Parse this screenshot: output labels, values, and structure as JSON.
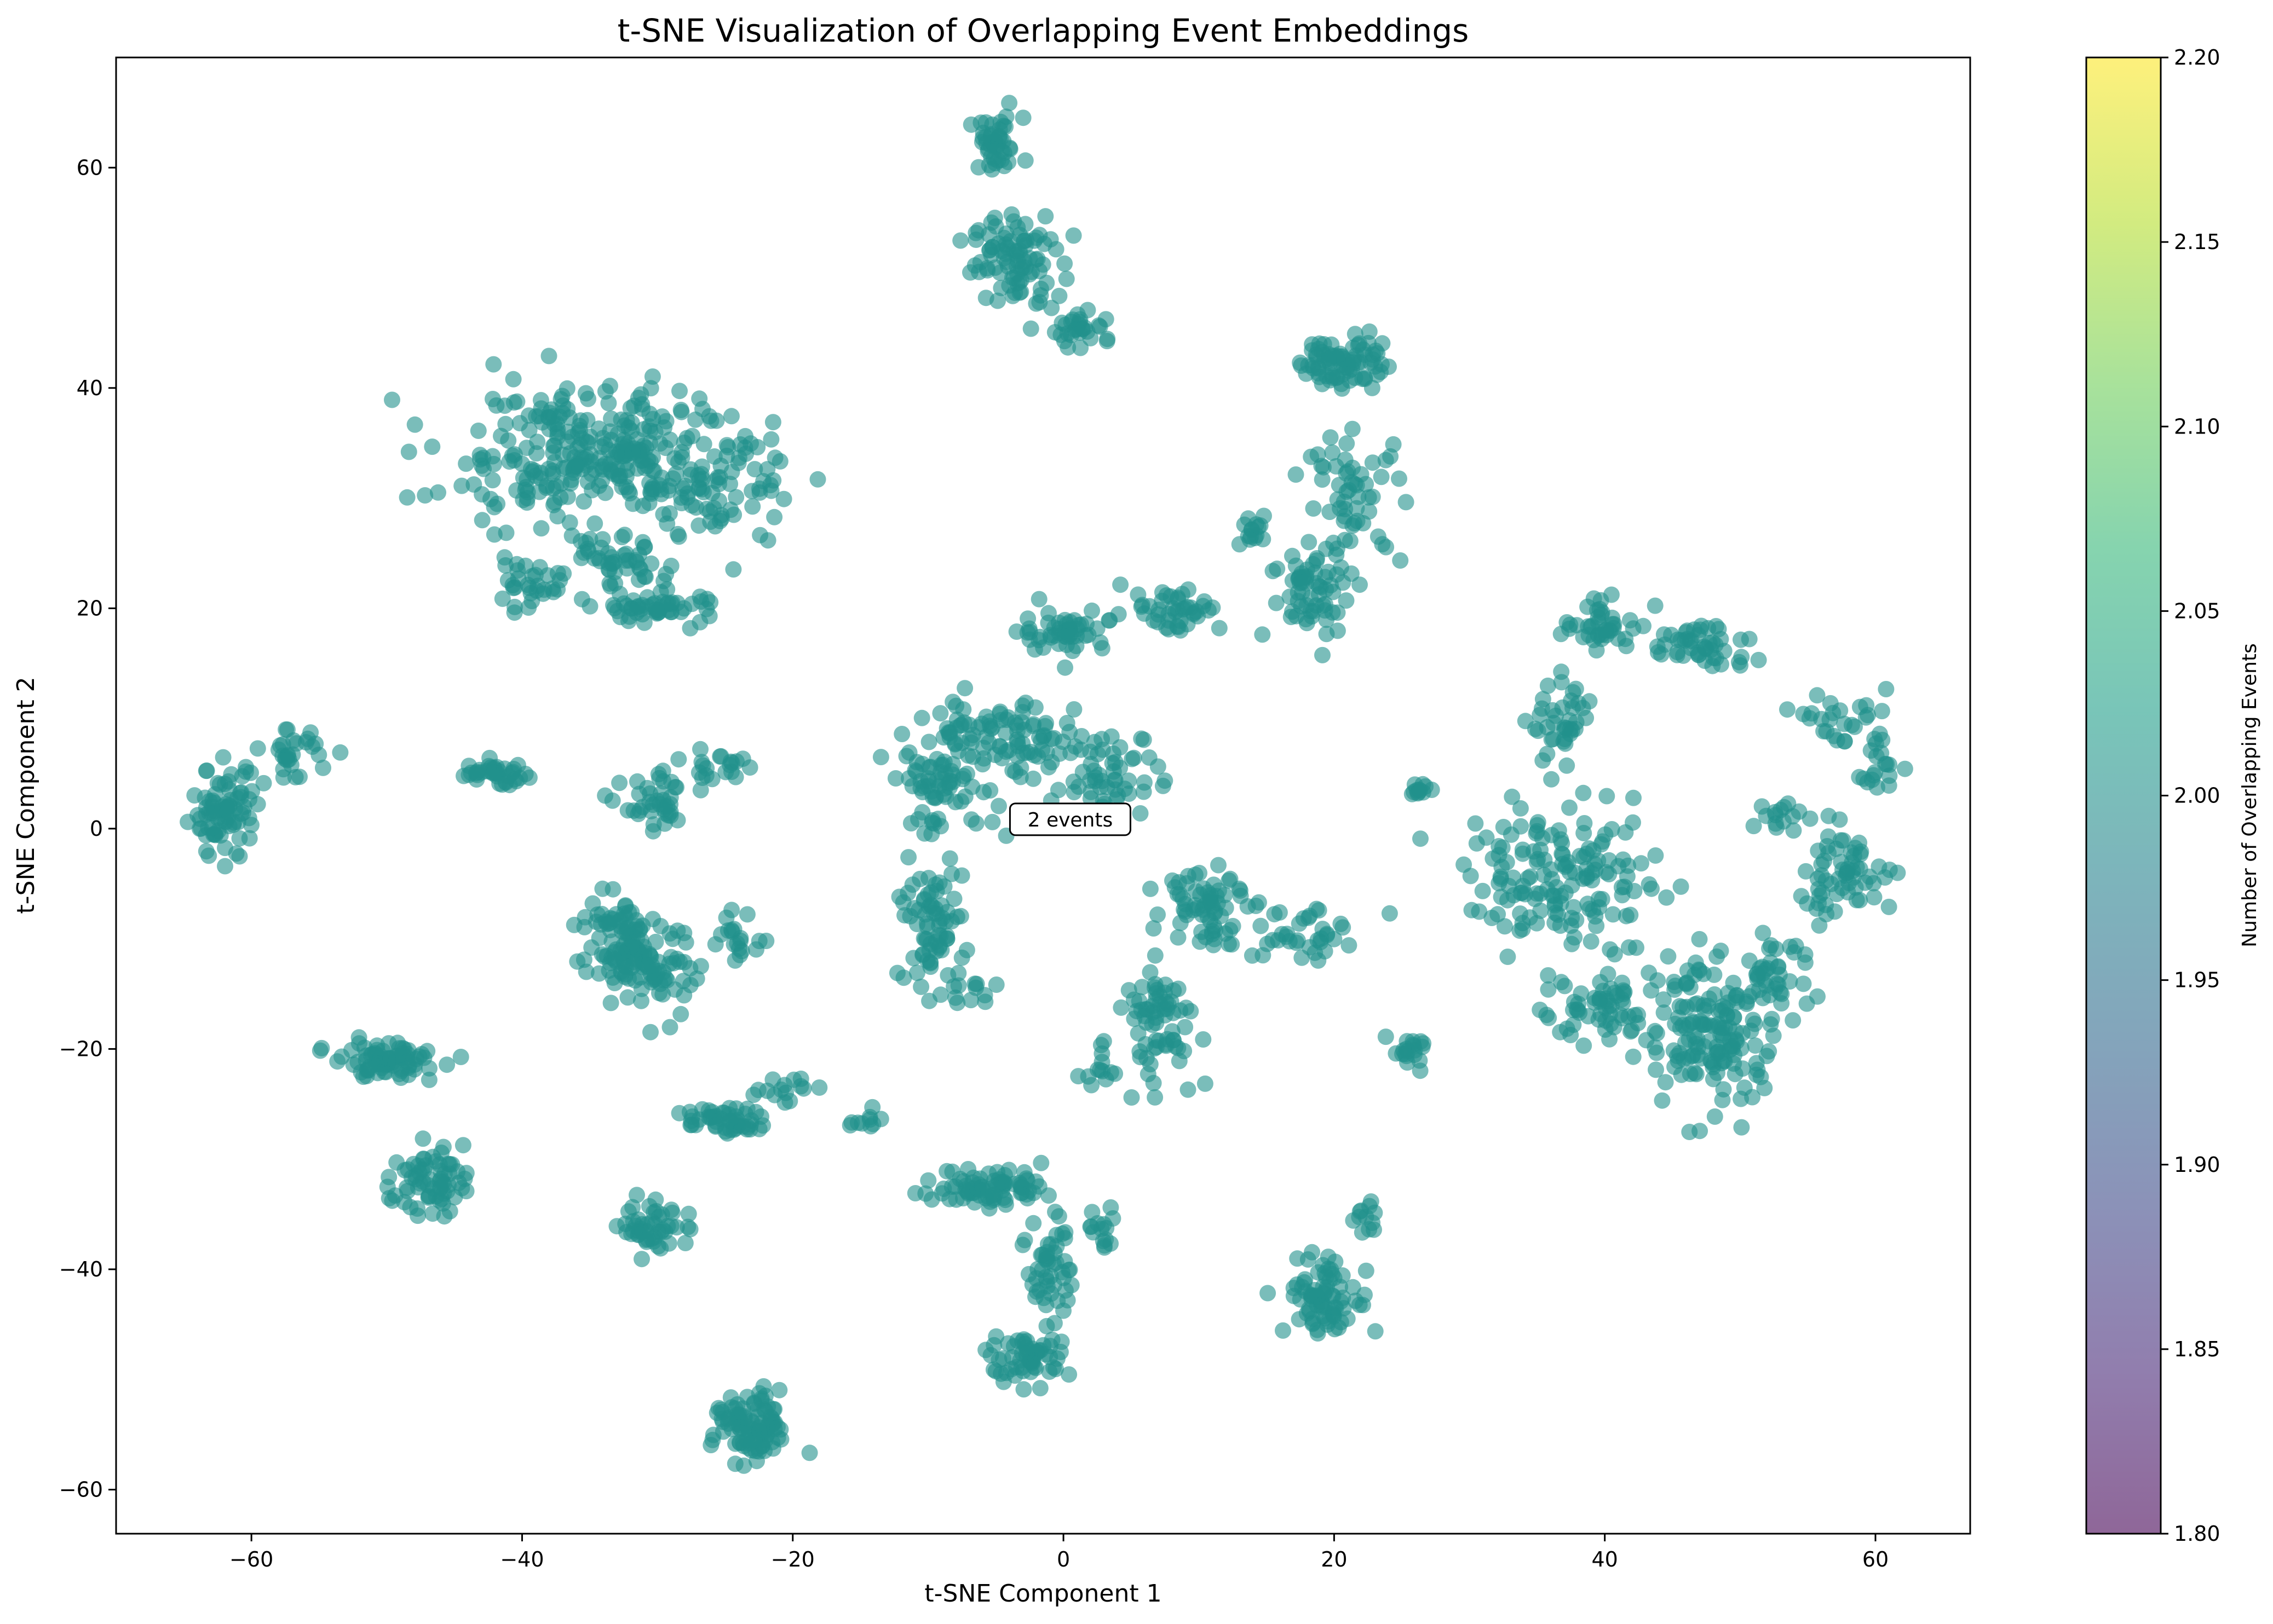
{
  "chart_data": {
    "type": "scatter",
    "title": "t-SNE Visualization of Overlapping Event Embeddings",
    "xlabel": "t-SNE Component 1",
    "ylabel": "t-SNE Component 2",
    "xlim": [
      -70,
      67
    ],
    "ylim": [
      -64,
      70
    ],
    "xticks": [
      -60,
      -40,
      -20,
      0,
      20,
      40,
      60
    ],
    "yticks": [
      -60,
      -40,
      -20,
      0,
      20,
      40,
      60
    ],
    "xtick_labels": [
      "−60",
      "−40",
      "−20",
      "0",
      "20",
      "40",
      "60"
    ],
    "ytick_labels": [
      "−60",
      "−40",
      "−20",
      "0",
      "20",
      "40",
      "60"
    ],
    "point_color": "#21918c",
    "point_alpha": 0.6,
    "grid": false,
    "colorbar": {
      "label": "Number of Overlapping Events",
      "range": [
        1.8,
        2.2
      ],
      "ticks": [
        1.8,
        1.85,
        1.9,
        1.95,
        2.0,
        2.05,
        2.1,
        2.15,
        2.2
      ],
      "tick_labels": [
        "1.80",
        "1.85",
        "1.90",
        "1.95",
        "2.00",
        "2.05",
        "2.10",
        "2.15",
        "2.20"
      ],
      "colormap": [
        "#440154",
        "#482878",
        "#3e4989",
        "#31688e",
        "#26828e",
        "#1f9e89",
        "#35b779",
        "#6ece58",
        "#b5de2b",
        "#fde725"
      ]
    },
    "annotation": {
      "text": "2 events",
      "x": 0.5,
      "y": 0.5
    },
    "clusters": [
      {
        "cx": -5,
        "cy": 62,
        "sx": 1.0,
        "sy": 1.3,
        "n": 45
      },
      {
        "cx": -3.5,
        "cy": 51.5,
        "sx": 1.6,
        "sy": 2.0,
        "n": 90
      },
      {
        "cx": 1.5,
        "cy": 45.5,
        "sx": 1.2,
        "sy": 0.9,
        "n": 30
      },
      {
        "cx": 20.5,
        "cy": 42.5,
        "sx": 1.5,
        "sy": 1.3,
        "n": 80
      },
      {
        "cx": -36,
        "cy": 34,
        "sx": 5.0,
        "sy": 3.0,
        "n": 260
      },
      {
        "cx": -26,
        "cy": 31.5,
        "sx": 3.0,
        "sy": 3.0,
        "n": 100
      },
      {
        "cx": -33.5,
        "cy": 23.5,
        "sx": 2.0,
        "sy": 1.5,
        "n": 50
      },
      {
        "cx": -40,
        "cy": 22,
        "sx": 1.3,
        "sy": 1.0,
        "n": 30
      },
      {
        "cx": -30,
        "cy": 20,
        "sx": 2.3,
        "sy": 0.7,
        "n": 50
      },
      {
        "cx": 21.5,
        "cy": 30,
        "sx": 1.8,
        "sy": 2.8,
        "n": 60
      },
      {
        "cx": 18.5,
        "cy": 21.5,
        "sx": 1.6,
        "sy": 2.2,
        "n": 60
      },
      {
        "cx": 8,
        "cy": 20,
        "sx": 1.8,
        "sy": 1.0,
        "n": 45
      },
      {
        "cx": 0,
        "cy": 18,
        "sx": 1.6,
        "sy": 1.0,
        "n": 50
      },
      {
        "cx": 14,
        "cy": 27,
        "sx": 0.6,
        "sy": 0.8,
        "n": 15
      },
      {
        "cx": 40,
        "cy": 18.5,
        "sx": 1.5,
        "sy": 1.0,
        "n": 40
      },
      {
        "cx": 47,
        "cy": 16.5,
        "sx": 2.0,
        "sy": 1.2,
        "n": 50
      },
      {
        "cx": 37,
        "cy": 9.5,
        "sx": 1.2,
        "sy": 1.8,
        "n": 40
      },
      {
        "cx": 58,
        "cy": 9.5,
        "sx": 1.5,
        "sy": 1.5,
        "n": 30
      },
      {
        "cx": 60,
        "cy": 5.5,
        "sx": 0.8,
        "sy": 1.0,
        "n": 15
      },
      {
        "cx": -62,
        "cy": 1.5,
        "sx": 1.2,
        "sy": 2.0,
        "n": 80
      },
      {
        "cx": -57,
        "cy": 6.5,
        "sx": 1.0,
        "sy": 1.2,
        "n": 30
      },
      {
        "cx": -42,
        "cy": 5,
        "sx": 1.4,
        "sy": 0.5,
        "n": 40
      },
      {
        "cx": -30,
        "cy": 2,
        "sx": 1.3,
        "sy": 1.3,
        "n": 40
      },
      {
        "cx": -25.5,
        "cy": 5.5,
        "sx": 1.5,
        "sy": 1.0,
        "n": 20
      },
      {
        "cx": -5,
        "cy": 8,
        "sx": 3.0,
        "sy": 2.0,
        "n": 100
      },
      {
        "cx": -9,
        "cy": 3.5,
        "sx": 2.0,
        "sy": 2.0,
        "n": 60
      },
      {
        "cx": 3,
        "cy": 5,
        "sx": 2.0,
        "sy": 2.0,
        "n": 60
      },
      {
        "cx": 26.5,
        "cy": 3.5,
        "sx": 0.5,
        "sy": 0.3,
        "n": 12
      },
      {
        "cx": 37,
        "cy": -4.5,
        "sx": 3.5,
        "sy": 3.0,
        "n": 150
      },
      {
        "cx": 57.5,
        "cy": -4,
        "sx": 2.0,
        "sy": 2.0,
        "n": 60
      },
      {
        "cx": 53.5,
        "cy": 1,
        "sx": 0.8,
        "sy": 0.8,
        "n": 15
      },
      {
        "cx": -10,
        "cy": -8.5,
        "sx": 1.3,
        "sy": 2.5,
        "n": 70
      },
      {
        "cx": -7,
        "cy": -14.5,
        "sx": 1.5,
        "sy": 0.8,
        "n": 15
      },
      {
        "cx": 10.5,
        "cy": -6.5,
        "sx": 1.5,
        "sy": 2.0,
        "n": 70
      },
      {
        "cx": 17.5,
        "cy": -9.5,
        "sx": 2.0,
        "sy": 1.5,
        "n": 35
      },
      {
        "cx": -33,
        "cy": -10,
        "sx": 1.6,
        "sy": 2.0,
        "n": 80
      },
      {
        "cx": -30,
        "cy": -13,
        "sx": 1.5,
        "sy": 2.0,
        "n": 70
      },
      {
        "cx": -24,
        "cy": -10.5,
        "sx": 0.8,
        "sy": 1.2,
        "n": 20
      },
      {
        "cx": 41,
        "cy": -15.5,
        "sx": 3.0,
        "sy": 2.0,
        "n": 80
      },
      {
        "cx": 48,
        "cy": -19,
        "sx": 2.5,
        "sy": 3.5,
        "n": 150
      },
      {
        "cx": 53,
        "cy": -12.5,
        "sx": 1.5,
        "sy": 1.5,
        "n": 30
      },
      {
        "cx": 7,
        "cy": -17.5,
        "sx": 1.5,
        "sy": 2.5,
        "n": 70
      },
      {
        "cx": 2.5,
        "cy": -22,
        "sx": 0.5,
        "sy": 1.2,
        "n": 12
      },
      {
        "cx": -50,
        "cy": -21,
        "sx": 2.0,
        "sy": 0.8,
        "n": 80
      },
      {
        "cx": 25.5,
        "cy": -20.5,
        "sx": 0.8,
        "sy": 0.7,
        "n": 20
      },
      {
        "cx": -25,
        "cy": -26.5,
        "sx": 1.4,
        "sy": 0.6,
        "n": 50
      },
      {
        "cx": -21,
        "cy": -23.5,
        "sx": 1.2,
        "sy": 0.6,
        "n": 15
      },
      {
        "cx": -14.5,
        "cy": -26.5,
        "sx": 1.0,
        "sy": 0.5,
        "n": 10
      },
      {
        "cx": -47,
        "cy": -32,
        "sx": 1.3,
        "sy": 1.5,
        "n": 70
      },
      {
        "cx": -30,
        "cy": -36,
        "sx": 1.3,
        "sy": 1.2,
        "n": 50
      },
      {
        "cx": -5.5,
        "cy": -32.5,
        "sx": 2.0,
        "sy": 0.9,
        "n": 80
      },
      {
        "cx": -1,
        "cy": -39.5,
        "sx": 0.8,
        "sy": 2.5,
        "n": 50
      },
      {
        "cx": 3,
        "cy": -36.5,
        "sx": 0.6,
        "sy": 1.0,
        "n": 15
      },
      {
        "cx": 19.5,
        "cy": -42.5,
        "sx": 1.5,
        "sy": 1.8,
        "n": 80
      },
      {
        "cx": 22,
        "cy": -35.5,
        "sx": 0.6,
        "sy": 0.8,
        "n": 12
      },
      {
        "cx": -2.5,
        "cy": -48,
        "sx": 1.5,
        "sy": 1.2,
        "n": 60
      },
      {
        "cx": -23,
        "cy": -54.5,
        "sx": 1.4,
        "sy": 1.6,
        "n": 100
      }
    ]
  }
}
